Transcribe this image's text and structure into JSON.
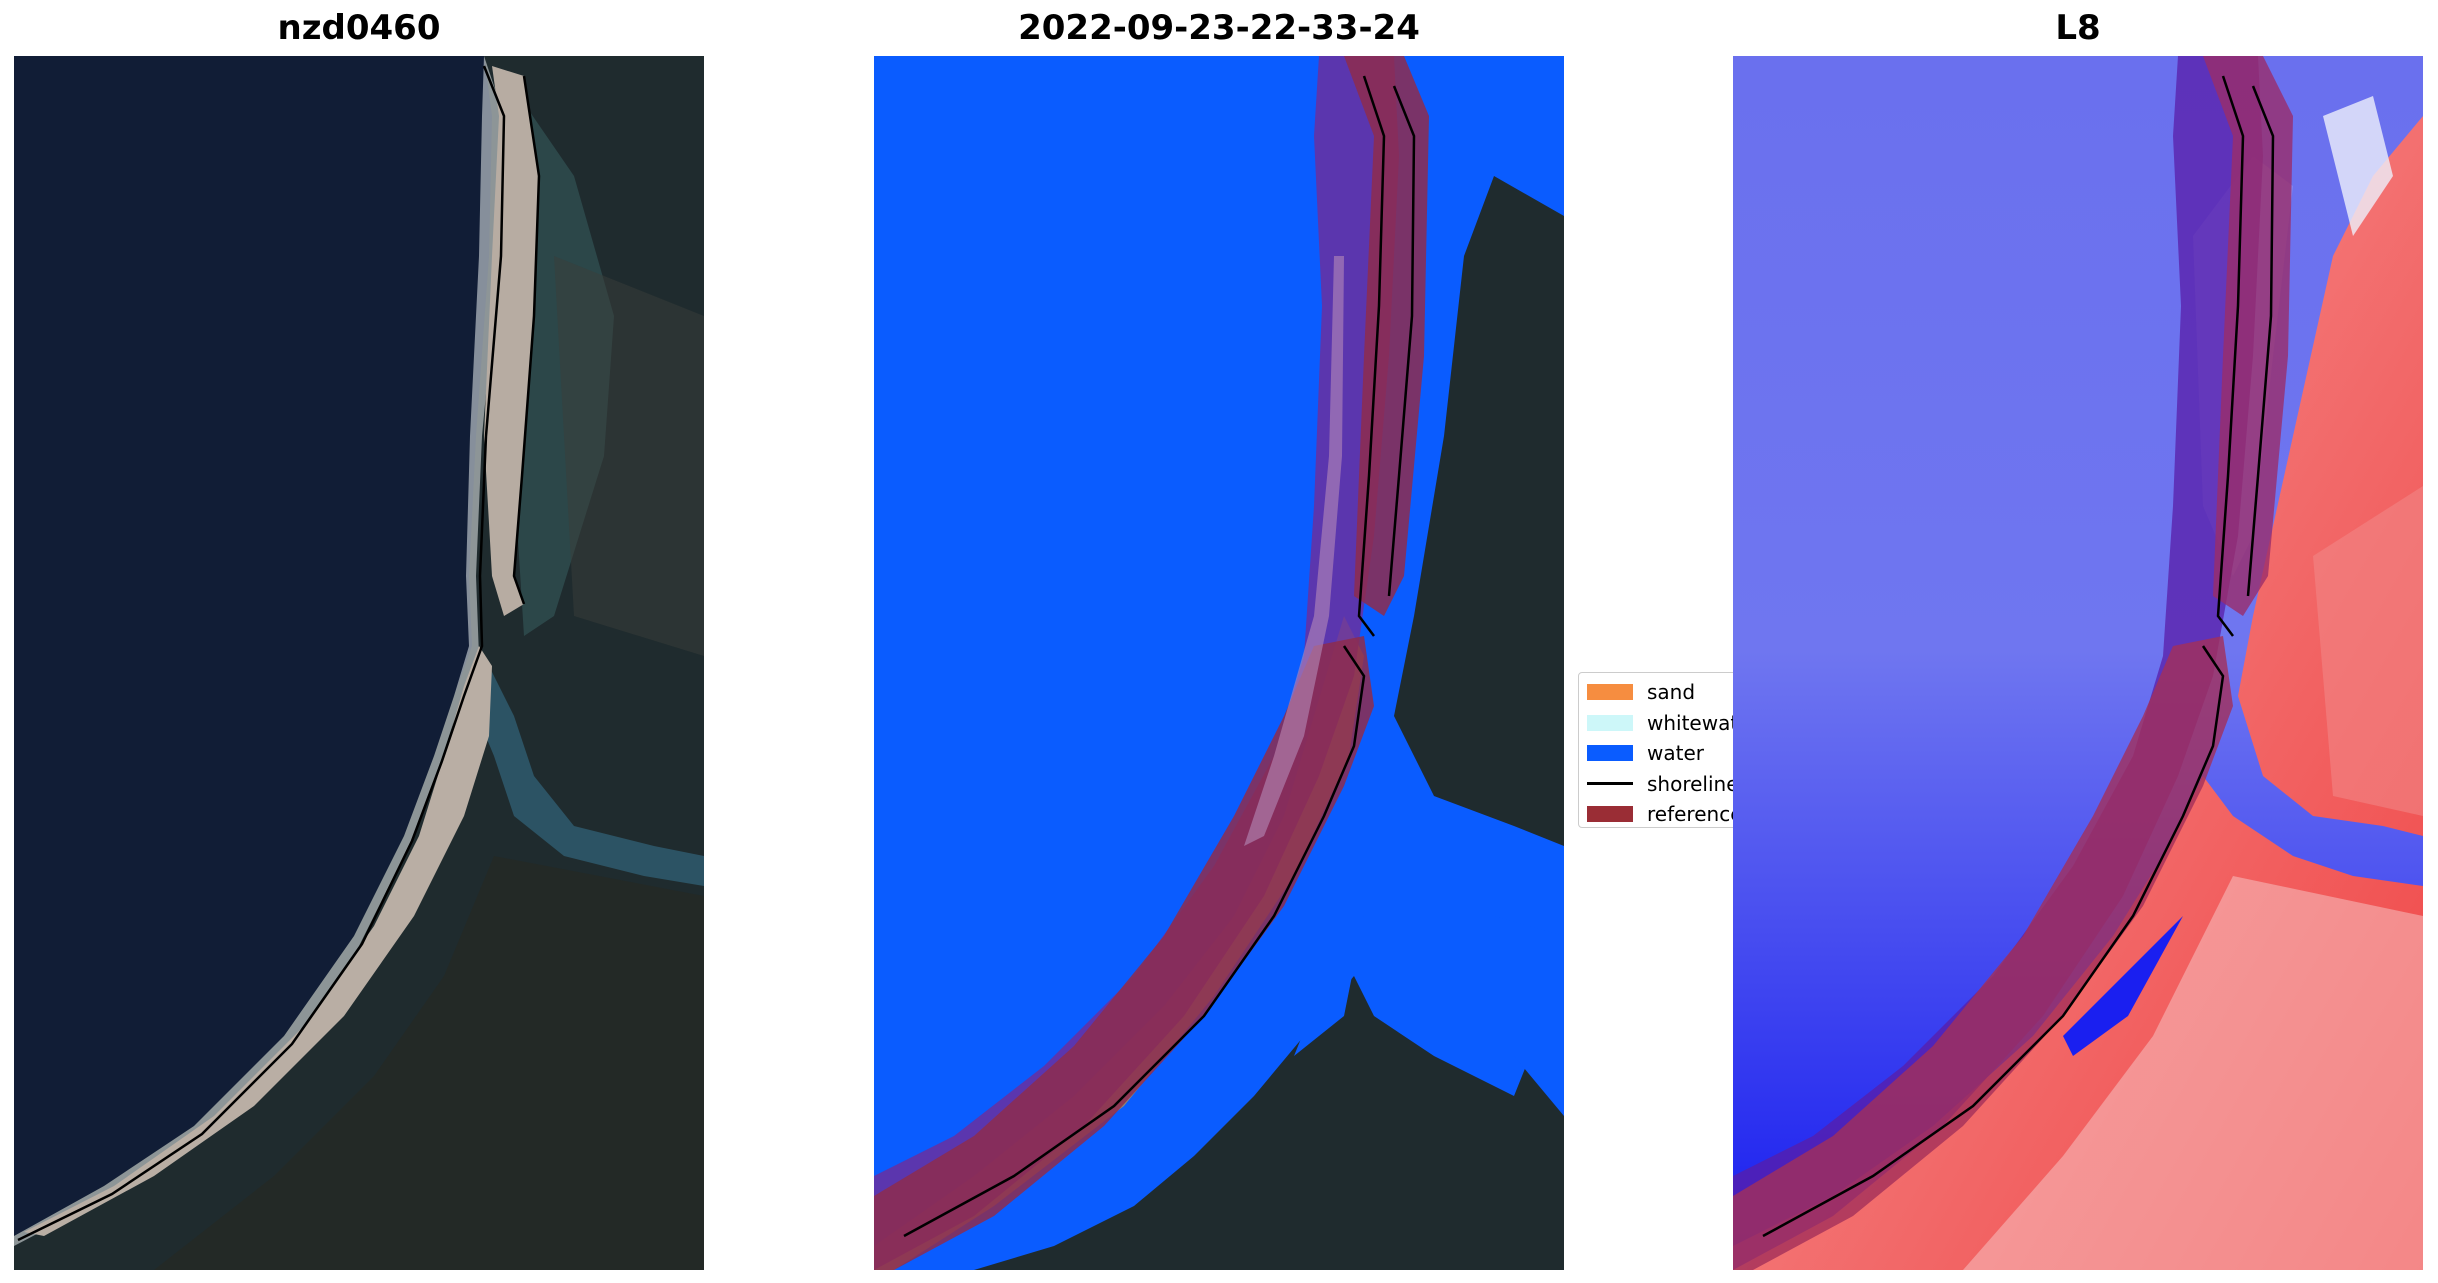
{
  "panels": [
    {
      "title": "nzd0460"
    },
    {
      "title": "2022-09-23-22-33-24"
    },
    {
      "title": "L8"
    }
  ],
  "legend": {
    "items": [
      {
        "label": "sand",
        "color": "#f68d40"
      },
      {
        "label": "whitewater",
        "color": "#cdf7f9"
      },
      {
        "label": "water",
        "color": "#0a5cff"
      },
      {
        "label": "shoreline",
        "color": "#000000"
      },
      {
        "label": "reference",
        "color": "#9a2d35"
      }
    ]
  },
  "colors": {
    "ocean_dark": "#111d36",
    "land_dark": "#1f2b2e",
    "beach_sand": "#b7aca2",
    "classified_water": "#0a5cff",
    "buffer_purple": "#6a2fa0",
    "reference_maroon": "#8e2b4d",
    "index_water_blue": "#1a1ff0",
    "index_land_red": "#f04545"
  }
}
